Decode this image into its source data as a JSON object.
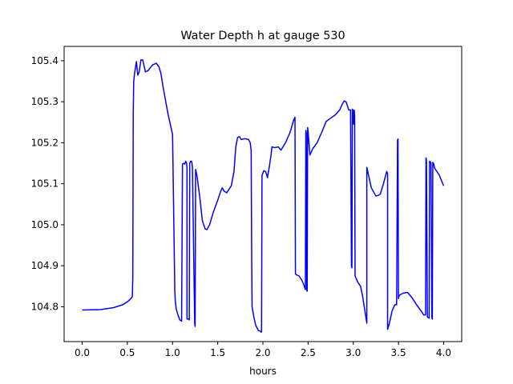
{
  "chart_data": {
    "type": "line",
    "title": "Water Depth h at gauge 530",
    "xlabel": "hours",
    "ylabel": "",
    "xlim": [
      -0.2,
      4.2
    ],
    "ylim": [
      104.715,
      105.435
    ],
    "xticks": [
      0.0,
      0.5,
      1.0,
      1.5,
      2.0,
      2.5,
      3.0,
      3.5,
      4.0
    ],
    "xtick_labels": [
      "0.0",
      "0.5",
      "1.0",
      "1.5",
      "2.0",
      "2.5",
      "3.0",
      "3.5",
      "4.0"
    ],
    "yticks": [
      104.8,
      104.9,
      105.0,
      105.1,
      105.2,
      105.3,
      105.4
    ],
    "ytick_labels": [
      "104.8",
      "104.9",
      "105.0",
      "105.1",
      "105.2",
      "105.3",
      "105.4"
    ],
    "grid": false,
    "series": [
      {
        "color": "#0000ff",
        "x": [
          0.0,
          0.2,
          0.35,
          0.45,
          0.5,
          0.54,
          0.555,
          0.56,
          0.565,
          0.57,
          0.58,
          0.6,
          0.615,
          0.63,
          0.65,
          0.67,
          0.7,
          0.73,
          0.75,
          0.78,
          0.82,
          0.85,
          0.87,
          0.9,
          0.95,
          1.0,
          1.025,
          1.03,
          1.04,
          1.06,
          1.08,
          1.1,
          1.11,
          1.11,
          1.125,
          1.135,
          1.145,
          1.155,
          1.16,
          1.16,
          1.18,
          1.185,
          1.19,
          1.2,
          1.21,
          1.215,
          1.22,
          1.245,
          1.25,
          1.25,
          1.255,
          1.27,
          1.3,
          1.33,
          1.36,
          1.38,
          1.41,
          1.45,
          1.5,
          1.53,
          1.55,
          1.57,
          1.6,
          1.65,
          1.68,
          1.7,
          1.72,
          1.74,
          1.76,
          1.8,
          1.84,
          1.86,
          1.87,
          1.875,
          1.88,
          1.9,
          1.92,
          1.95,
          1.975,
          1.98,
          1.985,
          1.99,
          2.01,
          2.03,
          2.05,
          2.07,
          2.09,
          2.1,
          2.13,
          2.17,
          2.2,
          2.25,
          2.3,
          2.34,
          2.355,
          2.36,
          2.37,
          2.4,
          2.43,
          2.45,
          2.47,
          2.475,
          2.48,
          2.485,
          2.49,
          2.495,
          2.5,
          2.52,
          2.55,
          2.6,
          2.65,
          2.7,
          2.75,
          2.8,
          2.85,
          2.88,
          2.9,
          2.92,
          2.95,
          2.97,
          2.98,
          2.985,
          2.99,
          2.995,
          3.0,
          3.005,
          3.01,
          3.015,
          3.02,
          3.05,
          3.08,
          3.1,
          3.15,
          3.15,
          3.16,
          3.2,
          3.25,
          3.28,
          3.3,
          3.34,
          3.37,
          3.38,
          3.38,
          3.4,
          3.43,
          3.46,
          3.48,
          3.49,
          3.495,
          3.5,
          3.505,
          3.51,
          3.55,
          3.6,
          3.65,
          3.7,
          3.75,
          3.78,
          3.8,
          3.805,
          3.81,
          3.82,
          3.84,
          3.845,
          3.85,
          3.86,
          3.87,
          3.875,
          3.88,
          3.89,
          3.9,
          3.95,
          4.0
        ],
        "y": [
          104.792,
          104.793,
          104.798,
          104.805,
          104.812,
          104.82,
          104.825,
          104.87,
          105.27,
          105.35,
          105.37,
          105.398,
          105.365,
          105.372,
          105.402,
          105.402,
          105.373,
          105.376,
          105.382,
          105.39,
          105.394,
          105.385,
          105.37,
          105.33,
          105.27,
          105.22,
          104.838,
          104.815,
          104.795,
          104.78,
          104.768,
          104.765,
          105.145,
          105.148,
          105.15,
          105.148,
          105.155,
          105.15,
          105.14,
          104.77,
          104.77,
          104.768,
          105.15,
          105.155,
          105.155,
          105.15,
          105.14,
          104.76,
          104.752,
          104.752,
          105.135,
          105.12,
          105.07,
          105.01,
          104.99,
          104.988,
          105.0,
          105.03,
          105.06,
          105.08,
          105.09,
          105.082,
          105.078,
          105.095,
          105.13,
          105.19,
          105.213,
          105.215,
          105.208,
          105.21,
          105.208,
          105.2,
          105.18,
          104.95,
          104.8,
          104.775,
          104.755,
          104.742,
          104.74,
          104.738,
          104.74,
          105.12,
          105.132,
          105.13,
          105.115,
          105.14,
          105.17,
          105.19,
          105.188,
          105.19,
          105.182,
          105.2,
          105.225,
          105.255,
          105.262,
          104.88,
          104.878,
          104.875,
          104.865,
          104.855,
          104.842,
          105.23,
          105.225,
          104.84,
          104.838,
          105.237,
          105.228,
          105.17,
          105.185,
          105.2,
          105.225,
          105.252,
          105.26,
          105.268,
          105.28,
          105.295,
          105.302,
          105.3,
          105.28,
          105.28,
          104.9,
          104.895,
          105.282,
          105.28,
          105.25,
          105.245,
          105.28,
          105.268,
          104.875,
          104.86,
          104.85,
          104.83,
          104.76,
          105.14,
          105.13,
          105.09,
          105.07,
          105.072,
          105.075,
          105.105,
          105.13,
          105.125,
          104.745,
          104.76,
          104.79,
          104.805,
          104.805,
          105.207,
          105.209,
          104.82,
          104.825,
          104.828,
          104.833,
          104.835,
          104.822,
          104.805,
          104.79,
          104.78,
          104.78,
          105.163,
          105.157,
          104.775,
          104.772,
          105.155,
          105.154,
          105.151,
          104.772,
          104.77,
          105.152,
          105.149,
          105.138,
          105.122,
          105.095
        ]
      }
    ]
  }
}
